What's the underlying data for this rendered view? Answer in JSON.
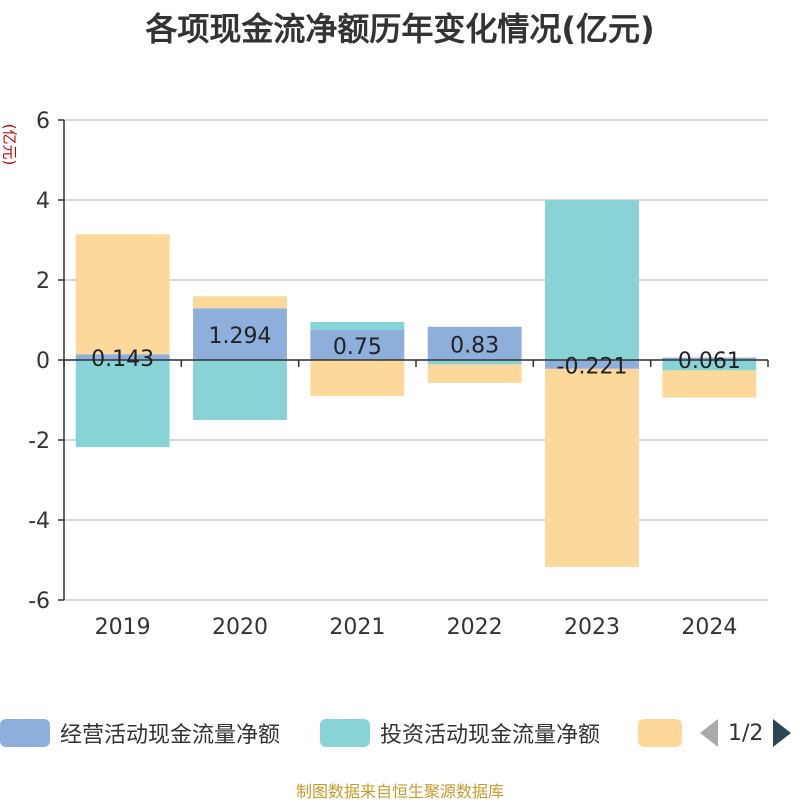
{
  "title": "各项现金流净额历年变化情况(亿元)",
  "yunit": "(亿元)",
  "source": "制图数据来自恒生聚源数据库",
  "legend": {
    "items": [
      {
        "label": "经营活动现金流量净额",
        "color": "#8eaedb"
      },
      {
        "label": "投资活动现金流量净额",
        "color": "#88d3d6"
      },
      {
        "label": "",
        "color": "#fcd89a"
      }
    ],
    "page": "1/2"
  },
  "chart_data": {
    "type": "bar",
    "stacked": true,
    "categories": [
      "2019",
      "2020",
      "2021",
      "2022",
      "2023",
      "2024"
    ],
    "ylim": [
      -6,
      6
    ],
    "yticks": [
      -6,
      -4,
      -2,
      0,
      2,
      4,
      6
    ],
    "series": [
      {
        "name": "经营活动现金流量净额",
        "color": "#8eaedb",
        "values": [
          0.143,
          1.294,
          0.75,
          0.83,
          -0.221,
          0.061
        ],
        "labels": [
          "0.143",
          "1.294",
          "0.75",
          "0.83",
          "-0.221",
          "0.061"
        ]
      },
      {
        "name": "投资活动现金流量净额",
        "color": "#88d3d6",
        "values": [
          -2.18,
          -1.5,
          0.2,
          -0.11,
          4.0,
          -0.26
        ]
      },
      {
        "color": "#fcd89a",
        "values": [
          3.0,
          0.3,
          -0.9,
          -0.46,
          -4.95,
          -0.68
        ]
      }
    ]
  }
}
